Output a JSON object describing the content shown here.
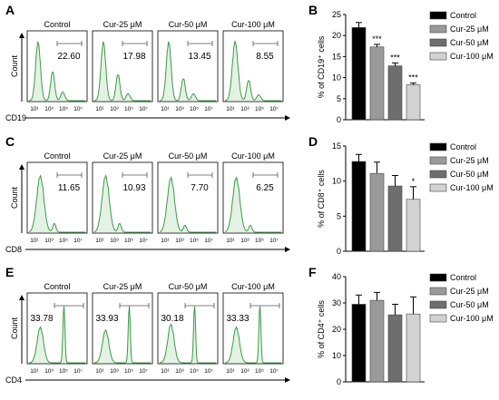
{
  "colors": {
    "histogram_line": "#3c9a47",
    "histogram_fill": "#e4f2e4",
    "axis": "#000000",
    "gate": "#555555",
    "bar_colors": [
      "#000000",
      "#9a9a9a",
      "#6e6e6e",
      "#d2d2d2"
    ],
    "bar_edge": "#444444"
  },
  "chart_data": [
    {
      "type": "histogram",
      "panel_label": "A",
      "marker": "CD19",
      "ylabel": "Count",
      "tick_labels": [
        "10¹",
        "10³",
        "10⁵",
        "10⁷"
      ],
      "gate_side": "right",
      "subplots": [
        {
          "title": "Control",
          "gate_value": "22.60"
        },
        {
          "title": "Cur-25 μM",
          "gate_value": "17.98"
        },
        {
          "title": "Cur-50 μM",
          "gate_value": "13.45"
        },
        {
          "title": "Cur-100 μM",
          "gate_value": "8.55"
        }
      ]
    },
    {
      "type": "bar",
      "panel_label": "B",
      "ylabel": "% of CD19⁺ cells",
      "ylim": [
        0,
        25
      ],
      "yticks": [
        0,
        5,
        10,
        15,
        20,
        25
      ],
      "categories": [
        "Control",
        "Cur-25 μM",
        "Cur-50 μM",
        "Cur-100 μM"
      ],
      "values": [
        21.9,
        17.3,
        12.8,
        8.3
      ],
      "errors": [
        1.2,
        0.6,
        0.7,
        0.4
      ],
      "significance": [
        "",
        "***",
        "***",
        "***"
      ],
      "legend": [
        "Control",
        "Cur-25 μM",
        "Cur-50 μM",
        "Cur-100 μM"
      ]
    },
    {
      "type": "histogram",
      "panel_label": "C",
      "marker": "CD8",
      "ylabel": "Count",
      "tick_labels": [
        "10¹",
        "10³",
        "10⁵",
        "10⁷"
      ],
      "gate_side": "right",
      "subplots": [
        {
          "title": "Control",
          "gate_value": "11.65"
        },
        {
          "title": "Cur-25 μM",
          "gate_value": "10.93"
        },
        {
          "title": "Cur-50 μM",
          "gate_value": "7.70"
        },
        {
          "title": "Cur-100 μM",
          "gate_value": "6.25"
        }
      ]
    },
    {
      "type": "bar",
      "panel_label": "D",
      "ylabel": "% of CD8⁺ cells",
      "ylim": [
        0,
        15
      ],
      "yticks": [
        0,
        5,
        10,
        15
      ],
      "categories": [
        "Control",
        "Cur-25 μM",
        "Cur-50 μM",
        "Cur-100 μM"
      ],
      "values": [
        12.8,
        11.1,
        9.3,
        7.4
      ],
      "errors": [
        1.0,
        1.6,
        1.5,
        1.8
      ],
      "significance": [
        "",
        "",
        "",
        "*"
      ],
      "legend": [
        "Control",
        "Cur-25 μM",
        "Cur-50 μM",
        "Cur-100 μM"
      ]
    },
    {
      "type": "histogram",
      "panel_label": "E",
      "marker": "CD4",
      "ylabel": "Count",
      "tick_labels": [
        "10¹",
        "10³",
        "10⁵",
        "10⁷"
      ],
      "gate_side": "left",
      "subplots": [
        {
          "title": "Control",
          "gate_value": "33.78"
        },
        {
          "title": "Cur-25 μM",
          "gate_value": "33.93"
        },
        {
          "title": "Cur-50 μM",
          "gate_value": "30.18"
        },
        {
          "title": "Cur-100 μM",
          "gate_value": "33.33"
        }
      ]
    },
    {
      "type": "bar",
      "panel_label": "F",
      "ylabel": "% of CD4⁺ cells",
      "ylim": [
        0,
        40
      ],
      "yticks": [
        0,
        10,
        20,
        30,
        40
      ],
      "categories": [
        "Control",
        "Cur-25 μM",
        "Cur-50 μM",
        "Cur-100 μM"
      ],
      "values": [
        29.5,
        31.0,
        25.5,
        25.8
      ],
      "errors": [
        3.5,
        3.0,
        4.0,
        6.5
      ],
      "significance": [
        "",
        "",
        "",
        ""
      ],
      "legend": [
        "Control",
        "Cur-25 μM",
        "Cur-50 μM",
        "Cur-100 μM"
      ]
    }
  ]
}
